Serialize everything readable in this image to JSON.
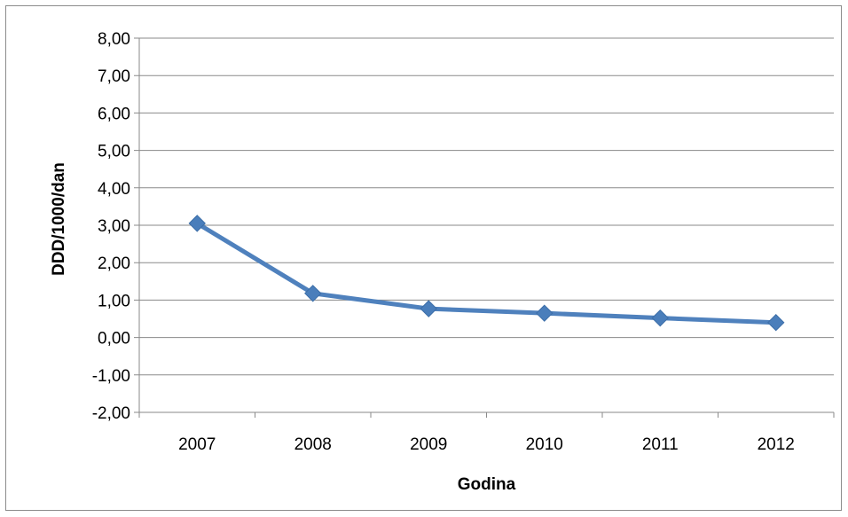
{
  "chart_data": {
    "type": "line",
    "title": "",
    "xlabel": "Godina",
    "ylabel": "DDD/1000/dan",
    "categories": [
      "2007",
      "2008",
      "2009",
      "2010",
      "2011",
      "2012"
    ],
    "series": [
      {
        "values": [
          3.05,
          1.18,
          0.77,
          0.65,
          0.52,
          0.4
        ]
      }
    ],
    "ylim": [
      -2,
      8
    ],
    "yticks": [
      8,
      7,
      6,
      5,
      4,
      3,
      2,
      1,
      0,
      -1,
      -2
    ],
    "ytick_labels": [
      "8,00",
      "7,00",
      "6,00",
      "5,00",
      "4,00",
      "3,00",
      "2,00",
      "1,00",
      "0,00",
      "-1,00",
      "-2,00"
    ],
    "grid": true,
    "legend": "none",
    "marker": "diamond",
    "line_color": "#4f81bd",
    "marker_color": "#4a7ebb"
  }
}
